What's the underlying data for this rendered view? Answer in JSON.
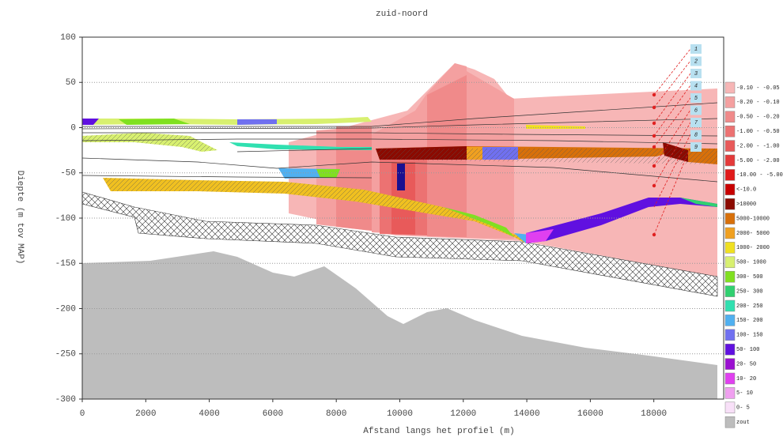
{
  "chart_data": {
    "type": "cross-section",
    "title": "zuid-noord",
    "x_label": "Afstand langs het profiel (m)",
    "y_label": "Diepte (m tov MAP)",
    "xlim": [
      0,
      20200
    ],
    "ylim": [
      -300,
      100
    ],
    "xticks": [
      0,
      2000,
      4000,
      6000,
      8000,
      10000,
      12000,
      14000,
      16000,
      18000
    ],
    "yticks": [
      100,
      50,
      0,
      -50,
      -100,
      -150,
      -200,
      -250,
      -300
    ],
    "grid": true,
    "boreholes": [
      "1",
      "2",
      "3",
      "4",
      "5",
      "6",
      "7",
      "8",
      "9"
    ],
    "legend": [
      {
        "label": "-0.10 - -0.05",
        "color": "#f7b6b6"
      },
      {
        "label": "-0.20 - -0.10",
        "color": "#f4a0a0"
      },
      {
        "label": "-0.50 - -0.20",
        "color": "#f08a8a"
      },
      {
        "label": "-1.00 - -0.50",
        "color": "#ec7272"
      },
      {
        "label": "-2.00 - -1.00",
        "color": "#e85a5a"
      },
      {
        "label": "-5.00 - -2.00",
        "color": "#e43a3a"
      },
      {
        "label": "-10.00 - -5.00",
        "color": "#e01a1a"
      },
      {
        "label": "<-10.0",
        "color": "#c80000"
      },
      {
        "label": ">10000",
        "color": "#8b0a00"
      },
      {
        "label": "5000-10000",
        "color": "#d8700a"
      },
      {
        "label": "2000- 5000",
        "color": "#f0a020"
      },
      {
        "label": "1000- 2000",
        "color": "#f0e020"
      },
      {
        "label": "500- 1000",
        "color": "#d8f070"
      },
      {
        "label": "300- 500",
        "color": "#80e020"
      },
      {
        "label": "250- 300",
        "color": "#30d070"
      },
      {
        "label": "200- 250",
        "color": "#30e0b0"
      },
      {
        "label": "150- 200",
        "color": "#50b0f0"
      },
      {
        "label": "100- 150",
        "color": "#7070f0"
      },
      {
        "label": "50- 100",
        "color": "#6010e0"
      },
      {
        "label": "20- 50",
        "color": "#9a10d0"
      },
      {
        "label": "10- 20",
        "color": "#e040f0"
      },
      {
        "label": "5- 10",
        "color": "#f0a0f0"
      },
      {
        "label": "0- 5",
        "color": "#f8e0f8"
      },
      {
        "label": "zout",
        "color": "#bdbdbd"
      }
    ]
  }
}
